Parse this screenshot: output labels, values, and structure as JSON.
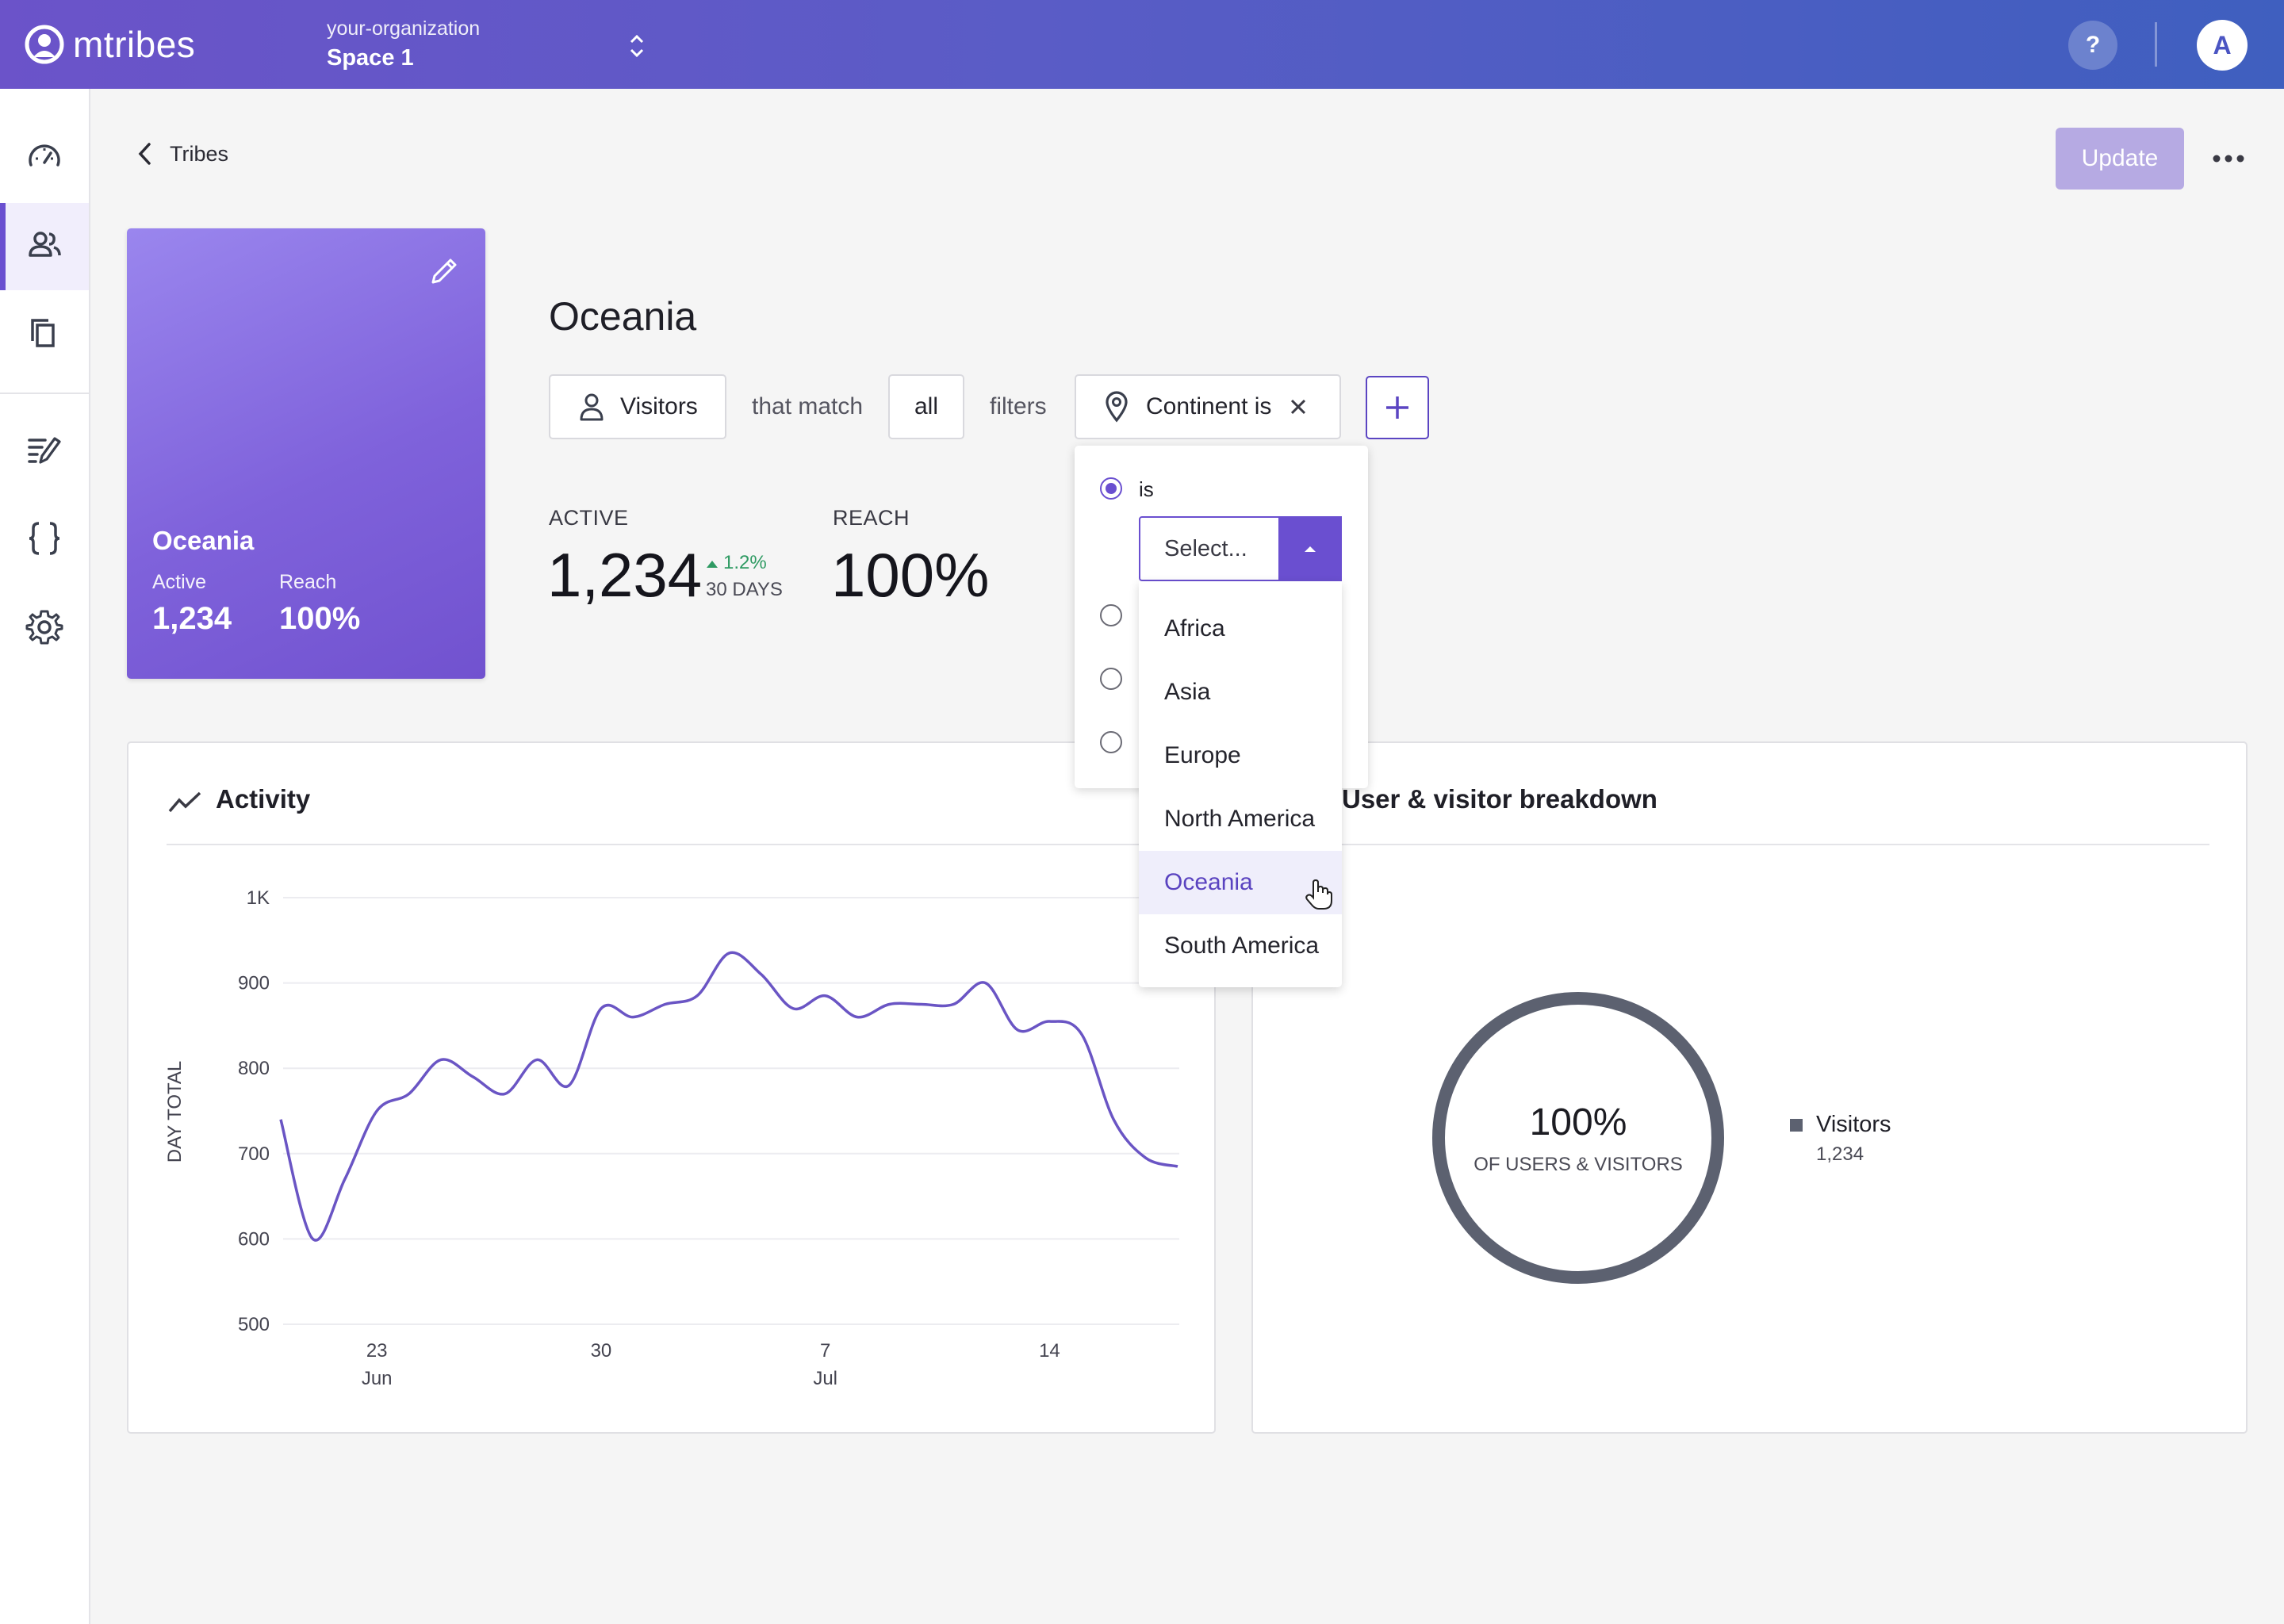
{
  "app": {
    "logo_text": "mtribes",
    "org_name": "your-organization",
    "space_name": "Space 1",
    "help_label": "?",
    "avatar_initial": "A"
  },
  "sidebar": {
    "items": [
      {
        "icon": "dashboard-icon",
        "active": false
      },
      {
        "icon": "users-icon",
        "active": true
      },
      {
        "icon": "copy-icon",
        "active": false
      },
      {
        "icon": "edit-list-icon",
        "active": false
      },
      {
        "icon": "braces-icon",
        "active": false
      },
      {
        "icon": "gear-icon",
        "active": false
      }
    ]
  },
  "header": {
    "back_label": "Tribes",
    "update_label": "Update"
  },
  "tribe_card": {
    "name": "Oceania",
    "active_label": "Active",
    "active_value": "1,234",
    "reach_label": "Reach",
    "reach_value": "100%"
  },
  "tribe": {
    "name": "Oceania",
    "filter": {
      "subject_label": "Visitors",
      "that_match": "that match",
      "match_mode": "all",
      "filters_word": "filters",
      "filter_chip_label": "Continent is"
    },
    "stats": {
      "active_label": "ACTIVE",
      "active_value": "1,234",
      "trend_value": "1.2%",
      "trend_period": "30 DAYS",
      "reach_label": "REACH",
      "reach_value": "100%"
    }
  },
  "dropdown": {
    "radio_is_label": "is",
    "select_placeholder": "Select...",
    "options": [
      "Africa",
      "Asia",
      "Europe",
      "North America",
      "Oceania",
      "South America"
    ],
    "hovered_option": "Oceania"
  },
  "activity": {
    "title": "Activity",
    "chart_data": {
      "type": "line",
      "ylabel": "DAY TOTAL",
      "ylim": [
        500,
        1000
      ],
      "y_ticks": [
        500,
        600,
        700,
        800,
        900,
        1000
      ],
      "y_tick_labels": [
        "500",
        "600",
        "700",
        "800",
        "900",
        "1K"
      ],
      "x_ticks": [
        {
          "day": "23",
          "month": "Jun"
        },
        {
          "day": "30",
          "month": ""
        },
        {
          "day": "7",
          "month": "Jul"
        },
        {
          "day": "14",
          "month": ""
        }
      ],
      "series": [
        {
          "color": "#6a55c4",
          "x": [
            "2024-06-20",
            "2024-06-21",
            "2024-06-22",
            "2024-06-23",
            "2024-06-24",
            "2024-06-25",
            "2024-06-26",
            "2024-06-27",
            "2024-06-28",
            "2024-06-29",
            "2024-06-30",
            "2024-07-01",
            "2024-07-02",
            "2024-07-03",
            "2024-07-04",
            "2024-07-05",
            "2024-07-06",
            "2024-07-07",
            "2024-07-08",
            "2024-07-09",
            "2024-07-10",
            "2024-07-11",
            "2024-07-12",
            "2024-07-13",
            "2024-07-14",
            "2024-07-15",
            "2024-07-16",
            "2024-07-17",
            "2024-07-18"
          ],
          "values": [
            740,
            600,
            670,
            750,
            770,
            810,
            790,
            770,
            810,
            780,
            870,
            860,
            875,
            885,
            935,
            910,
            870,
            885,
            860,
            875,
            875,
            875,
            900,
            845,
            855,
            840,
            740,
            695,
            685
          ]
        }
      ]
    }
  },
  "breakdown": {
    "title": "User & visitor breakdown",
    "donut_percent": "100%",
    "donut_subtitle": "OF USERS & VISITORS",
    "chart_data": {
      "type": "pie",
      "categories": [
        "Visitors"
      ],
      "values": [
        1234
      ],
      "value_labels": [
        "1,234"
      ],
      "colors": [
        "#5c6170"
      ]
    }
  }
}
